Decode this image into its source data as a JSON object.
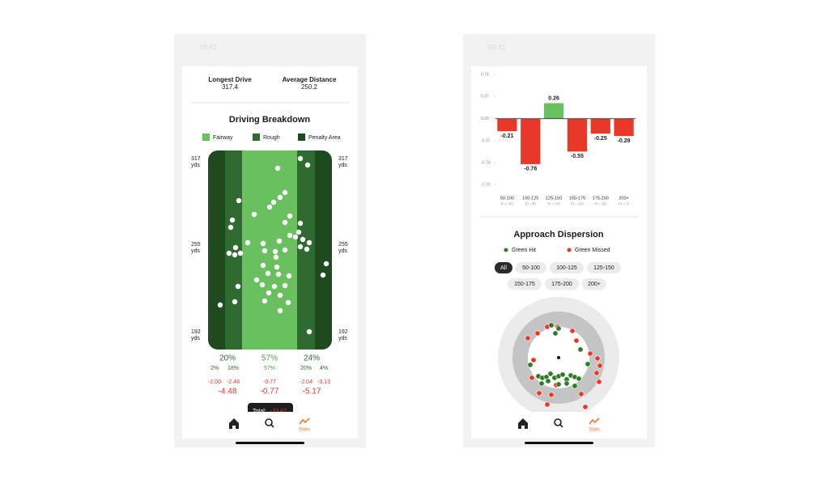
{
  "left": {
    "status_time": "09:41",
    "summary": [
      {
        "label": "Longest Drive",
        "value": "317.4"
      },
      {
        "label": "Average Distance",
        "value": "250.2"
      }
    ],
    "breakdown": {
      "title": "Driving Breakdown",
      "legend": [
        "Fairway",
        "Rough",
        "Penalty Area"
      ],
      "distance_labels": [
        {
          "value": "317",
          "unit": "yds"
        },
        {
          "value": "255",
          "unit": "yds"
        },
        {
          "value": "192",
          "unit": "yds"
        }
      ],
      "columns": [
        {
          "pct": "20%",
          "split": [
            "2%",
            "18%"
          ],
          "sg": [
            "-2.00",
            "-2.48"
          ],
          "total": "-4.48"
        },
        {
          "pct": "57%",
          "split": [
            "57%"
          ],
          "sg": [
            "-0.77"
          ],
          "total": "-0.77"
        },
        {
          "pct": "24%",
          "split": [
            "20%",
            "4%"
          ],
          "sg": [
            "-2.04",
            "-3.13"
          ],
          "total": "-5.17"
        }
      ],
      "tooltip": {
        "label": "Total:",
        "value": "-10.42"
      }
    },
    "nav": {
      "active": "Stats"
    }
  },
  "right": {
    "status_time": "09:41",
    "chart_data": {
      "type": "bar",
      "categories": [
        "50-100",
        "100-125",
        "125-150",
        "150-175",
        "175-200",
        "200+"
      ],
      "sample_sizes": [
        "(n = 11)",
        "(n = 9)",
        "(n = 14)",
        "(n = 12)",
        "(n = 11)",
        "(n = 7)"
      ],
      "values": [
        -0.21,
        -0.76,
        0.26,
        -0.55,
        -0.25,
        -0.29
      ],
      "ylim": [
        -1.1,
        0.74
      ],
      "yticks": [
        0.74,
        0.37,
        {
          "value": 0,
          "label": "0.00"
        },
        -0.37,
        -0.74,
        {
          "value": -1.1,
          "label": "-1.10"
        }
      ],
      "positive_color": "#6abf5e",
      "negative_color": "#e8382a"
    },
    "dispersion": {
      "title": "Approach Dispersion",
      "legend": [
        "Green Hit",
        "Green Missed"
      ],
      "filters": [
        "All",
        "50-100",
        "100-125",
        "125-150",
        "150-175",
        "175-200",
        "200+"
      ]
    },
    "nav": {
      "active": "Stats"
    }
  }
}
